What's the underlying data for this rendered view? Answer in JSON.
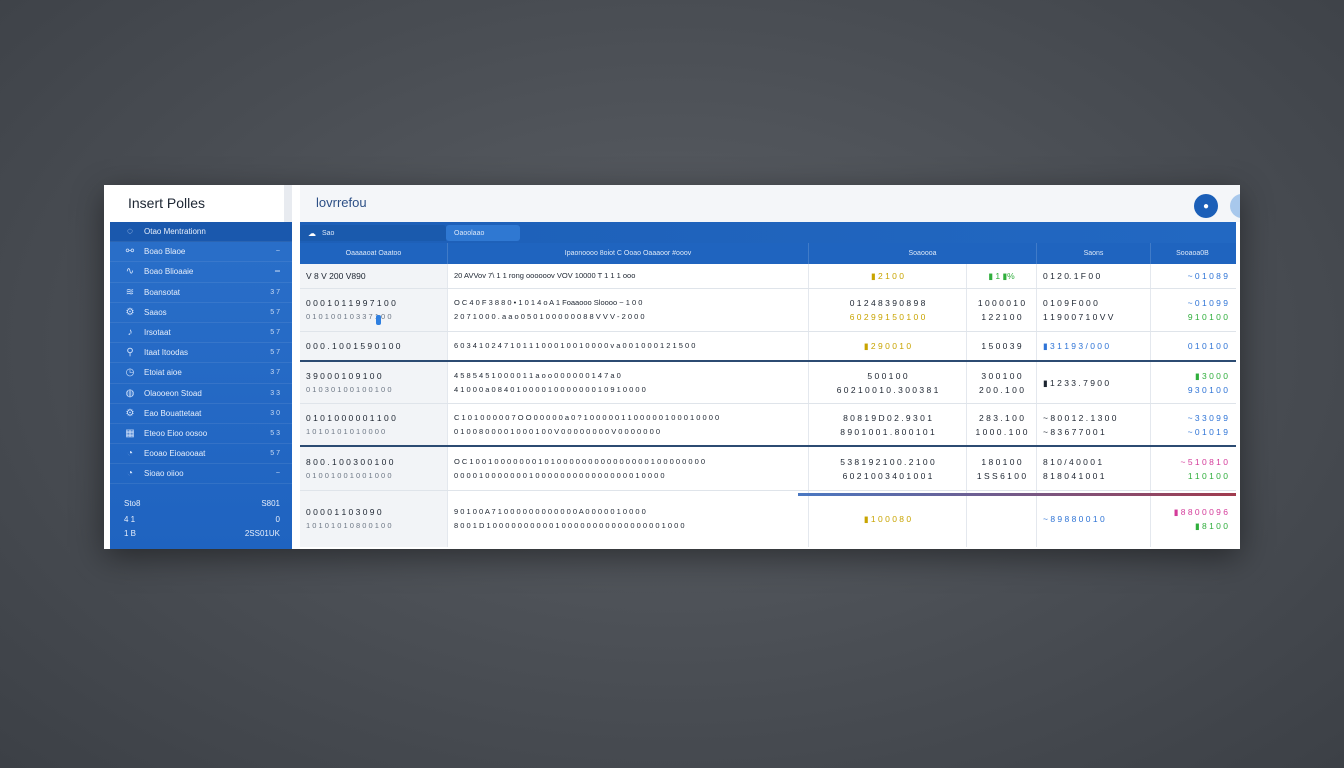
{
  "sidebar": {
    "title": "Insert Polles",
    "items": [
      {
        "icon": "chat-icon",
        "label": "Otao Mentrationn",
        "count": ""
      },
      {
        "icon": "link-icon",
        "label": "Boao Blaoe",
        "count": "~"
      },
      {
        "icon": "wave-icon",
        "label": "Boao Blioaaie",
        "count": "═"
      },
      {
        "icon": "stack-icon",
        "label": "Boansotat",
        "count": "3 7"
      },
      {
        "icon": "gear-icon",
        "label": "Saaos",
        "count": "5 7"
      },
      {
        "icon": "bell-icon",
        "label": "Irsotaat",
        "count": "5 7"
      },
      {
        "icon": "pin-icon",
        "label": "Itaat Itoodas",
        "count": "5 7"
      },
      {
        "icon": "clock-icon",
        "label": "Etoiat aioe",
        "count": "3 7"
      },
      {
        "icon": "globe-icon",
        "label": "Olaooeon Stoad",
        "count": "3 3"
      },
      {
        "icon": "gear-icon",
        "label": "Eao Bouattetaat",
        "count": "3 0"
      },
      {
        "icon": "grid-icon",
        "label": "Eteoo Eioo oosoo",
        "count": "5 3"
      },
      {
        "icon": "chart-icon",
        "label": "Eooao Eioaooaat",
        "count": "5 7"
      },
      {
        "icon": "chart-icon",
        "label": "Sioao oiioo",
        "count": "~"
      }
    ],
    "footer": {
      "row1_left": "Sto8",
      "row1_right": "S801",
      "row2_left": "4 1",
      "row2_right": "0",
      "row3_left": "1 B",
      "row3_right": "2SS01UK"
    }
  },
  "main": {
    "app_title": "lovrrefou",
    "tabs": [
      "Sao",
      "Oaoolaao"
    ],
    "headers": [
      "Oaaaaoat Oaatoo",
      "Ipaonoooo    8oiot  C Ooao    Oaaaoor #ooov",
      "Soaoooa",
      "Saons",
      "Sooaoa0B"
    ],
    "rows": [
      {
        "c1": "V 8 V 200  V890",
        "c1b": "",
        "c2": "20 AVVov 7\\   1  1 rong oooooov VOV 10000 T 1  1 1 ooo",
        "c2b": "",
        "c3": "▮ 2 1 0 0",
        "c3b": "",
        "c4": "▮ 1 ▮%",
        "c5": "0 1 2 0. 1 F 0 0",
        "c6": "~ 0 1 0   8 9"
      },
      {
        "c1": "0 0 0   1 0 1      1 9 9 7  1 0 0",
        "c1b": "0 1 0 1 0 0 1 0     3 3 7  1 0 0",
        "c2": "O C 4 0 F    3 8 8 0    • 1 0 1 4 o  A   1  Foaaooo  Sloooo    ~ 1 0 0",
        "c2b": "2 0 7          1 0 0 0 . a a o 0 5   0   1  0 0 0 0 0 0 8 8 V V V   -  2 0 0 0",
        "c3": "0 1 2   4 8     3 9 0   8 9 8",
        "c3b": "6 0 2   9 9     1 5 0   1 0 0",
        "c4": "1 0 0 0   0 1 0",
        "c4b": "1 2 2   1 0 0",
        "c5": "0  1 0 9  F  0 0 0",
        "c5b": "1 1 9 0 0  7 1 0 V V",
        "c6": "~ 0 1 0   9 9",
        "c6b": "9 1 0   1 0 0"
      },
      {
        "c1": "0 0 0 . 1 0 0       1 5 9 0  1 0 0",
        "c1b": "",
        "c2": "6 0 3 4          1 0 2 4  7   1 0  1 1 1 0 0 0 1 0 0 1 0 0 0 0 v a 0 0 1 0 0 0 1 2 1 5 0 0",
        "c2b": "",
        "c3": "▮ 2 9 0 0 1 0",
        "c3b": "",
        "c4": "1 5 0   0 3 9",
        "c5": "▮ 3 1 1 9 3 / 0 0 0",
        "c6": "0 1 0   1 0 0"
      },
      {
        "c1": "3 9 0   0 0        1 0 9   1 0 0",
        "c1b": "0 1 0 3 0 1 0 0     1 0 0  1 0 0",
        "c2": "4 5 8 5   4   5    1 0 0 0 0 1 1 a o o 0 0 0 0 0 0 1 4 7 a 0",
        "c2b": "4 1 0 0 0 a 0 8  4   0    1 0 0 0 0 1 0 0 0 0 0 0 0 1 0 9  1 0 0 0 0",
        "c3": "5 0 0   1 0 0",
        "c3b": "6 0 2   1 0 0    1 0 . 3 0 0 3 8 1",
        "c4": "3 0 0   1 0 0",
        "c4b": "2 0 0 . 1 0 0",
        "c5": "▮ 1 2 3 3 . 7 9 0 0",
        "c5b": "",
        "c6": "▮  3 0 0 0",
        "c6b": "9 3 0   1 0 0"
      },
      {
        "c1": "0 1 0   1 0 0       0 0 0 1  1 0 0",
        "c1b": "1 0 1 0 1 0 1 0     1 0 0 0 0",
        "c2": "C 1 0  1 0 0 0 0 0   7 O O 0 0 0 0 0 a 0 ?  1 0 0 0 0 0 1 1 0 0 0 0 0 1 0 0 0 1 0 0 0 0",
        "c2b": "0 1 0 0           8 0 0 0 0 1 0 0 0 1 0 0 V 0 0 0 0 0 0 0 0 V 0 0 0 0 0 0 0",
        "c3": "8 0 8   1 9     D  0 2 . 9 3 0 1",
        "c3b": "8 9 0   1 0 0     1 . 8 0 0 1 0 1",
        "c4": "2 8 3 .   1 0 0",
        "c4b": "1 0 0 0 .   1 0 0",
        "c5": "~ 8 0 0 1 2 . 1 3 0 0",
        "c5b": "~ 8 3 6 7 7 0 0 1",
        "c6": "~ 3 3 0   9 9",
        "c6b": "~ 0 1 0   1 9"
      },
      {
        "c1": "8 0 0 . 1 0 0       3 0 0 1 0 0",
        "c1b": "0 1 0 0 1 0 0 1 0 0    1 0 0 0",
        "c2": "O C 1 0 0  1 0 0 0 0 0 0 0 1 0 1 0 0 0 0 0 0 0 0 0 0 0 0 0 0 0 1 0 0 0 0 0 0 0 0",
        "c2b": "0 0 0 0         1 0 0 0 0 0 0 0 1 0 0 0 0 0 0 0 0 0 0 0 0 0 0 0 0 1 0 0 0 0",
        "c3": "5 3 8   1 9     2 1 0 0 . 2 1 0 0",
        "c3b": "6 0 2   1 0 0   3 4 0 1 0 0 1",
        "c4": "1 8 0   1 0 0",
        "c4b": "1 S S 6   1 0 0",
        "c5": "8 1 0 / 4 0 0 0 1",
        "c5b": "8 1 8 0 4   1 0 0 1",
        "c6": "~ 5 1 0   8 1 0",
        "c6b": "1 1 0   1 0 0"
      },
      {
        "c1": "0 0 0 0 1      1 0 3 0 9 0",
        "c1b": "1 0 1 0 1 0 1 0     8 0 0 1 0 0",
        "c2": "9 0 1 0 0  A   7   1  0 0 0 0 0 0 0 0 0 0 0 0 A 0 0 0 0 0 1 0 0 0 0",
        "c2b": "8 0 0 1   D    1 0 0 0 0 0 0 0 0 0 0 1 0 0 0 0 0 0 0 0 0 0 0 0 0 0 0 0 1 0 0 0",
        "c3": "▮ 1 0 0 0 8 0",
        "c3b": "",
        "c4": "",
        "c5": "~ 8 9 8 8  0 0 1 0",
        "c5b": "",
        "c6": "▮ 8 8 0 0 0 9 6",
        "c6b": "▮  8 1 0 0"
      }
    ]
  }
}
